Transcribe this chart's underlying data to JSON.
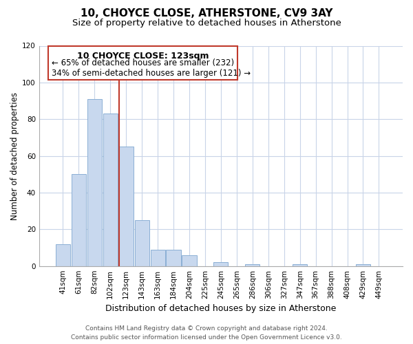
{
  "title": "10, CHOYCE CLOSE, ATHERSTONE, CV9 3AY",
  "subtitle": "Size of property relative to detached houses in Atherstone",
  "xlabel": "Distribution of detached houses by size in Atherstone",
  "ylabel": "Number of detached properties",
  "categories": [
    "41sqm",
    "61sqm",
    "82sqm",
    "102sqm",
    "123sqm",
    "143sqm",
    "163sqm",
    "184sqm",
    "204sqm",
    "225sqm",
    "245sqm",
    "265sqm",
    "286sqm",
    "306sqm",
    "327sqm",
    "347sqm",
    "367sqm",
    "388sqm",
    "408sqm",
    "429sqm",
    "449sqm"
  ],
  "values": [
    12,
    50,
    91,
    83,
    65,
    25,
    9,
    9,
    6,
    0,
    2,
    0,
    1,
    0,
    0,
    1,
    0,
    0,
    0,
    1,
    0
  ],
  "bar_color": "#c8d8ee",
  "bar_edge_color": "#8bafd4",
  "highlight_index": 4,
  "highlight_bar_edge_color": "#c0392b",
  "ylim": [
    0,
    120
  ],
  "yticks": [
    0,
    20,
    40,
    60,
    80,
    100,
    120
  ],
  "annotation_title": "10 CHOYCE CLOSE: 123sqm",
  "annotation_line1": "← 65% of detached houses are smaller (232)",
  "annotation_line2": "34% of semi-detached houses are larger (121) →",
  "annotation_box_color": "#ffffff",
  "annotation_box_edge_color": "#c0392b",
  "footer_line1": "Contains HM Land Registry data © Crown copyright and database right 2024.",
  "footer_line2": "Contains public sector information licensed under the Open Government Licence v3.0.",
  "background_color": "#ffffff",
  "grid_color": "#c8d4e8",
  "title_fontsize": 11,
  "subtitle_fontsize": 9.5,
  "xlabel_fontsize": 9,
  "ylabel_fontsize": 8.5,
  "tick_fontsize": 7.5,
  "annotation_title_fontsize": 9,
  "annotation_fontsize": 8.5,
  "footer_fontsize": 6.5
}
